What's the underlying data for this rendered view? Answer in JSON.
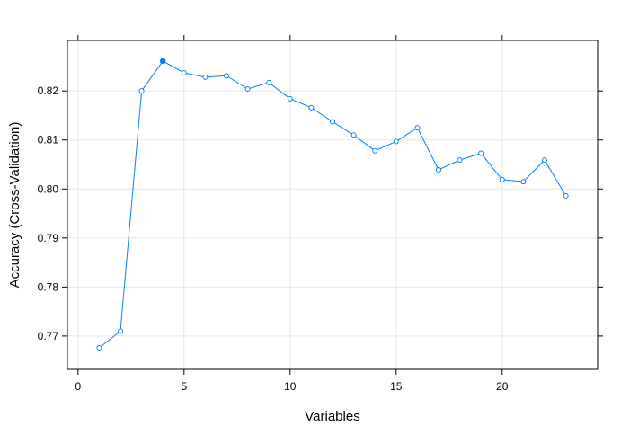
{
  "chart_data": {
    "type": "line",
    "title": "",
    "xlabel": "Variables",
    "ylabel": "Accuracy (Cross-Validation)",
    "xlim": [
      -0.5,
      24.5
    ],
    "ylim": [
      0.7632,
      0.8303
    ],
    "x_ticks": [
      0,
      5,
      10,
      15,
      20
    ],
    "y_ticks": [
      0.77,
      0.78,
      0.79,
      0.8,
      0.81,
      0.82
    ],
    "y_tick_labels": [
      "0.77",
      "0.78",
      "0.79",
      "0.80",
      "0.81",
      "0.82"
    ],
    "grid": true,
    "line_color": "#0080ff",
    "grid_color": "#e6e6e6",
    "highlight_index": 3,
    "series": [
      {
        "x": [
          1,
          2,
          3,
          4,
          5,
          6,
          7,
          8,
          9,
          10,
          11,
          12,
          13,
          14,
          15,
          16,
          17,
          18,
          19,
          20,
          21,
          22,
          23
        ],
        "values": [
          0.7676,
          0.771,
          0.82,
          0.8261,
          0.8237,
          0.8228,
          0.8231,
          0.8204,
          0.8217,
          0.8184,
          0.8166,
          0.8137,
          0.811,
          0.8078,
          0.8097,
          0.8125,
          0.8039,
          0.8059,
          0.8073,
          0.8019,
          0.8015,
          0.8059,
          0.7986
        ]
      }
    ]
  }
}
